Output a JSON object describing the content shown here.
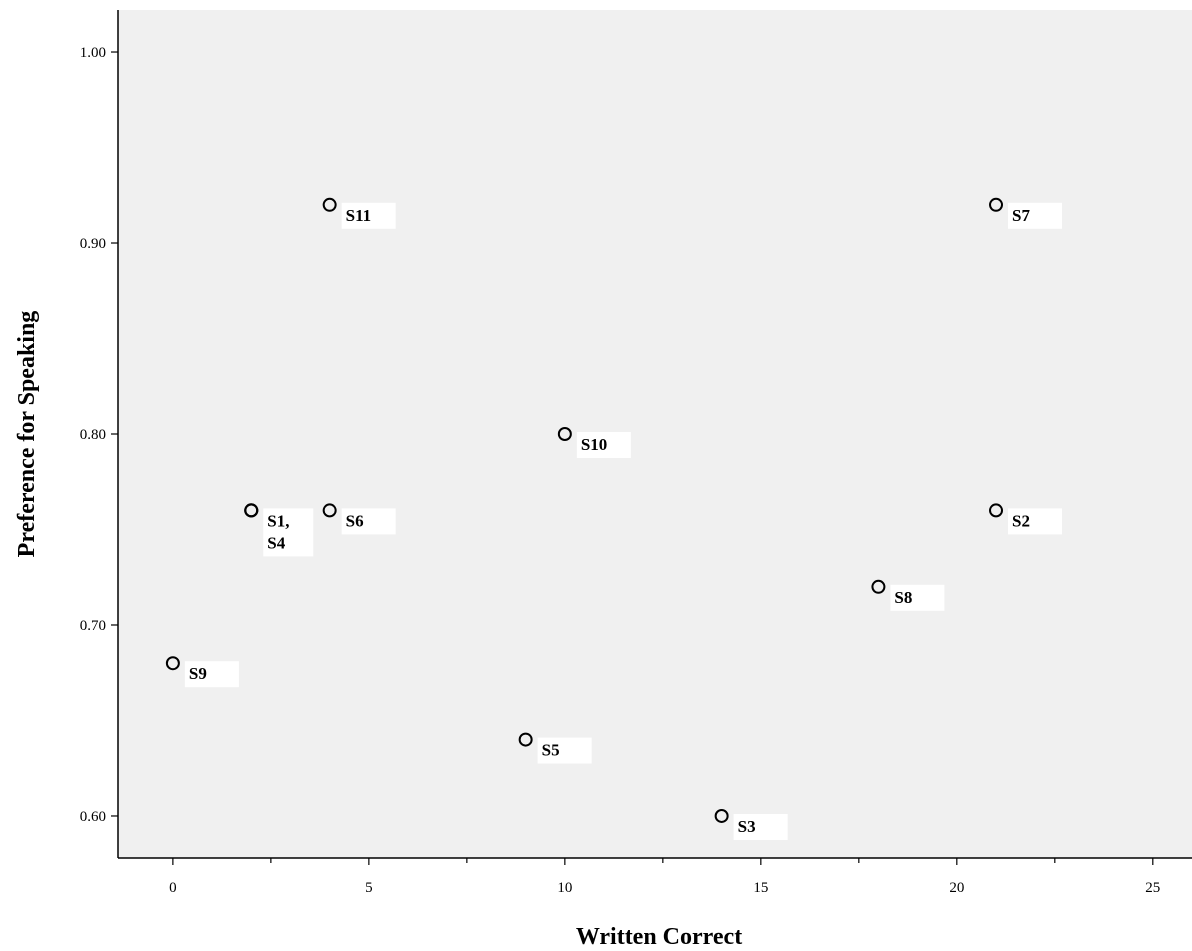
{
  "chart_data": {
    "type": "scatter",
    "title": "",
    "xlabel": "Written Correct",
    "ylabel": "Preference for Speaking",
    "xlim": [
      -1.4,
      26
    ],
    "ylim": [
      0.578,
      1.022
    ],
    "x_ticks": [
      0,
      5,
      10,
      15,
      20,
      25
    ],
    "x_tick_labels": [
      "0",
      "5",
      "10",
      "15",
      "20",
      "25"
    ],
    "x_minor_ticks": [
      2.5,
      7.5,
      12.5,
      17.5,
      22.5
    ],
    "y_ticks": [
      0.6,
      0.7,
      0.8,
      0.9,
      1.0
    ],
    "y_tick_labels": [
      "0.60",
      "0.70",
      "0.80",
      "0.90",
      "1.00"
    ],
    "grid": false,
    "background": "#f0f0f0",
    "points": [
      {
        "label": "S11",
        "x": 4,
        "y": 0.92
      },
      {
        "label": "S7",
        "x": 21,
        "y": 0.92
      },
      {
        "label": "S10",
        "x": 10,
        "y": 0.8
      },
      {
        "label_lines": [
          "S1,",
          "S4"
        ],
        "x": 2,
        "y": 0.76
      },
      {
        "label": "S6",
        "x": 4,
        "y": 0.76
      },
      {
        "label": "S2",
        "x": 21,
        "y": 0.76
      },
      {
        "label": "S8",
        "x": 18,
        "y": 0.72
      },
      {
        "label": "S9",
        "x": 0,
        "y": 0.68
      },
      {
        "label": "S5",
        "x": 9,
        "y": 0.64
      },
      {
        "label": "S3",
        "x": 14,
        "y": 0.6
      }
    ]
  }
}
